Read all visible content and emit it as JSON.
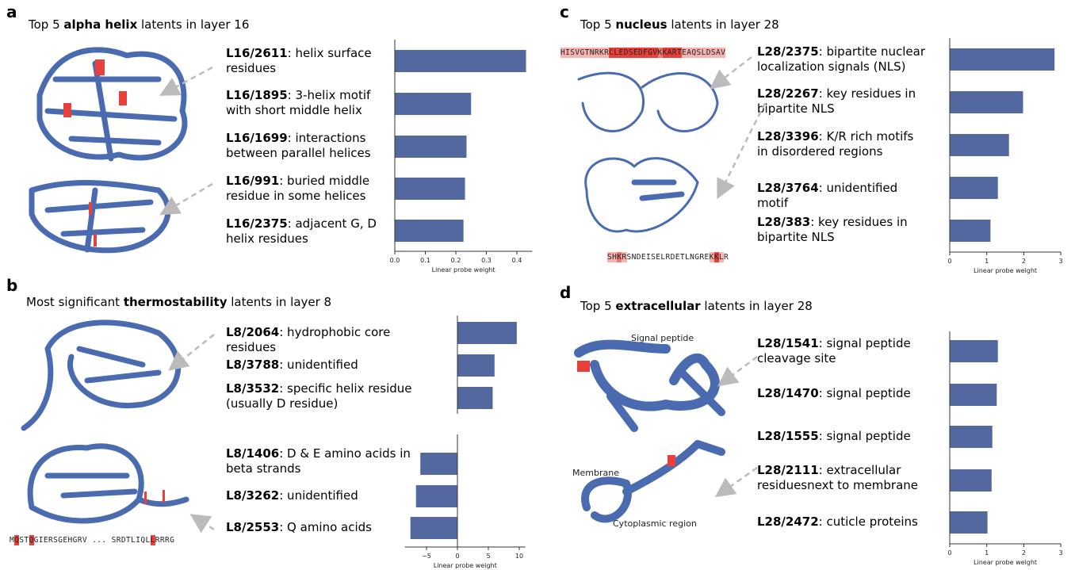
{
  "colors": {
    "bar": "#5468a0",
    "protein": "#4a6bb0",
    "highlight": "#e8403a",
    "highlight_light": "#f6b3b0",
    "arrow": "#bbbbbb"
  },
  "panels": [
    {
      "letter": "a",
      "title_pre": "Top 5 ",
      "title_bold": "alpha helix",
      "title_post": " latents in layer 16",
      "latents": [
        {
          "id": "L16/2611",
          "desc": ": helix surface residues"
        },
        {
          "id": "L16/1895",
          "desc": ": 3-helix motif with short middle helix"
        },
        {
          "id": "L16/1699",
          "desc": ": interactions between parallel helices"
        },
        {
          "id": "L16/991",
          "desc": ": buried middle residue in some helices"
        },
        {
          "id": "L16/2375",
          "desc": ": adjacent G, D helix residues"
        }
      ]
    },
    {
      "letter": "b",
      "title_pre": "Most significant ",
      "title_bold": "thermostability",
      "title_post": " latents in layer 8",
      "latents": [
        {
          "id": "L8/2064",
          "desc": ": hydrophobic core residues"
        },
        {
          "id": "L8/3788",
          "desc": ": unidentified"
        },
        {
          "id": "L8/3532",
          "desc": ": specific helix residue (usually D residue)"
        },
        {
          "id": "L8/1406",
          "desc": ": D & E amino acids in beta strands"
        },
        {
          "id": "L8/3262",
          "desc": ": unidentified"
        },
        {
          "id": "L8/2553",
          "desc": ": Q amino acids"
        }
      ],
      "sequence": "MQSTQGIERSGEHGRV ... SRDTLIQLLRRRG"
    },
    {
      "letter": "c",
      "title_pre": "Top 5 ",
      "title_bold": "nucleus",
      "title_post": " latents in layer 28",
      "latents": [
        {
          "id": "L28/2375",
          "desc": ": bipartite nuclear localization signals (NLS)"
        },
        {
          "id": "L28/2267",
          "desc": ": key residues in bipartite NLS"
        },
        {
          "id": "L28/3396",
          "desc": ": K/R rich motifs in disordered regions"
        },
        {
          "id": "L28/3764",
          "desc": ": unidentified motif"
        },
        {
          "id": "L28/383",
          "desc": ": key residues in bipartite NLS"
        }
      ],
      "sequence_top": "HISVGTNRKRCLEDSEDFGVKKARTEAQSLDSAV",
      "sequence_bottom": "SHKRSNDEISELRDETLNGREKKLR"
    },
    {
      "letter": "d",
      "title_pre": "Top 5 ",
      "title_bold": "extracellular",
      "title_post": " latents in layer 28",
      "latents": [
        {
          "id": "L28/1541",
          "desc": ": signal peptide cleavage site"
        },
        {
          "id": "L28/1470",
          "desc": ": signal peptide"
        },
        {
          "id": "L28/1555",
          "desc": ": signal peptide"
        },
        {
          "id": "L28/2111",
          "desc": ": extracellular residuesnext to membrane"
        },
        {
          "id": "L28/2472",
          "desc": ": cuticle proteins"
        }
      ],
      "annotations": {
        "signal": "Signal peptide",
        "membrane": "Membrane",
        "cyto": "Cytoplasmic region"
      }
    }
  ],
  "chart_data": [
    {
      "type": "bar",
      "orientation": "horizontal",
      "categories": [
        "L16/2611",
        "L16/1895",
        "L16/1699",
        "L16/991",
        "L16/2375"
      ],
      "values": [
        0.43,
        0.25,
        0.235,
        0.23,
        0.225
      ],
      "xlabel": "Linear probe weight",
      "xlim": [
        0,
        0.45
      ],
      "xticks": [
        "0.0",
        "0.1",
        "0.2",
        "0.3",
        "0.4"
      ]
    },
    {
      "type": "bar",
      "orientation": "horizontal",
      "categories": [
        "L8/2064",
        "L8/3788",
        "L8/3532",
        "L8/1406",
        "L8/3262",
        "L8/2553"
      ],
      "values": [
        9.6,
        6.0,
        5.7,
        -6.0,
        -6.7,
        -7.6
      ],
      "xlabel": "Linear probe weight",
      "xlim": [
        -8.5,
        11
      ],
      "xticks": [
        "−5",
        "0",
        "5",
        "10"
      ]
    },
    {
      "type": "bar",
      "orientation": "horizontal",
      "categories": [
        "L28/2375",
        "L28/2267",
        "L28/3396",
        "L28/3764",
        "L28/383"
      ],
      "values": [
        2.83,
        1.98,
        1.6,
        1.3,
        1.1
      ],
      "xlabel": "Linear probe weight",
      "xlim": [
        0,
        3
      ],
      "xticks": [
        "0",
        "1",
        "2",
        "3"
      ]
    },
    {
      "type": "bar",
      "orientation": "horizontal",
      "categories": [
        "L28/1541",
        "L28/1470",
        "L28/1555",
        "L28/2111",
        "L28/2472"
      ],
      "values": [
        1.3,
        1.27,
        1.15,
        1.13,
        1.02
      ],
      "xlabel": "Linear probe weight",
      "xlim": [
        0,
        3
      ],
      "xticks": [
        "0",
        "1",
        "2",
        "3"
      ]
    }
  ]
}
